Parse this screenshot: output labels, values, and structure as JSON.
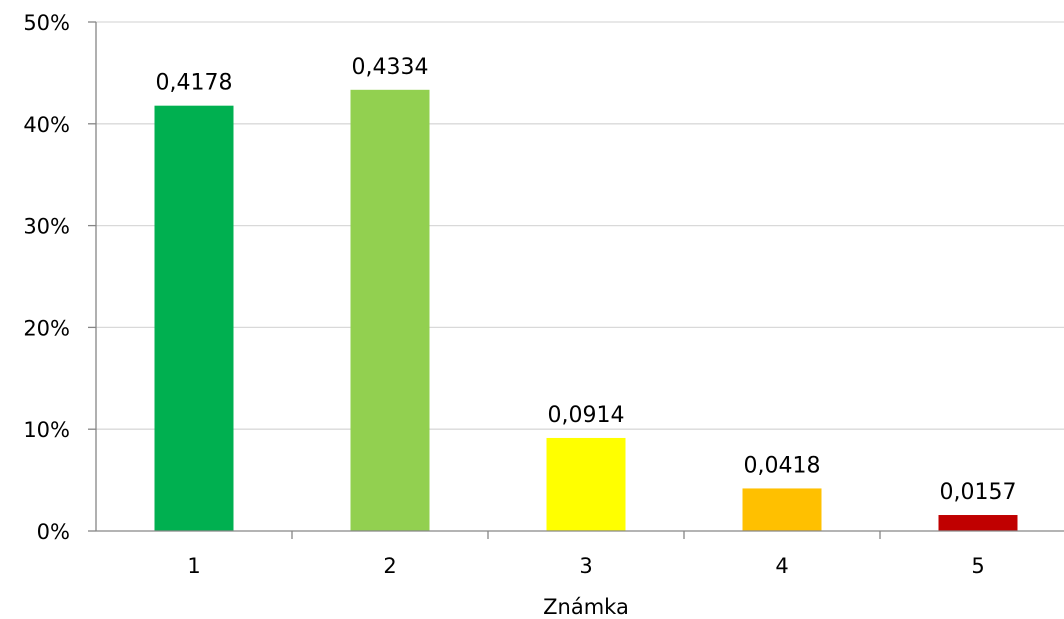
{
  "chart_data": {
    "type": "bar",
    "categories": [
      "1",
      "2",
      "3",
      "4",
      "5"
    ],
    "values": [
      0.4178,
      0.4334,
      0.0914,
      0.0418,
      0.0157
    ],
    "data_labels": [
      "0,4178",
      "0,4334",
      "0,0914",
      "0,0418",
      "0,0157"
    ],
    "bar_colors": [
      "#00b050",
      "#92d050",
      "#ffff00",
      "#ffc000",
      "#c00000"
    ],
    "xlabel": "Známka",
    "ylabel": "",
    "ylim": [
      0,
      0.5
    ],
    "y_ticks": [
      0,
      0.1,
      0.2,
      0.3,
      0.4,
      0.5
    ],
    "y_tick_labels": [
      "0%",
      "10%",
      "20%",
      "30%",
      "40%",
      "50%"
    ],
    "grid": true,
    "legend": false,
    "colors": {
      "gridline": "#d9d9d9",
      "axis": "#868686"
    }
  }
}
